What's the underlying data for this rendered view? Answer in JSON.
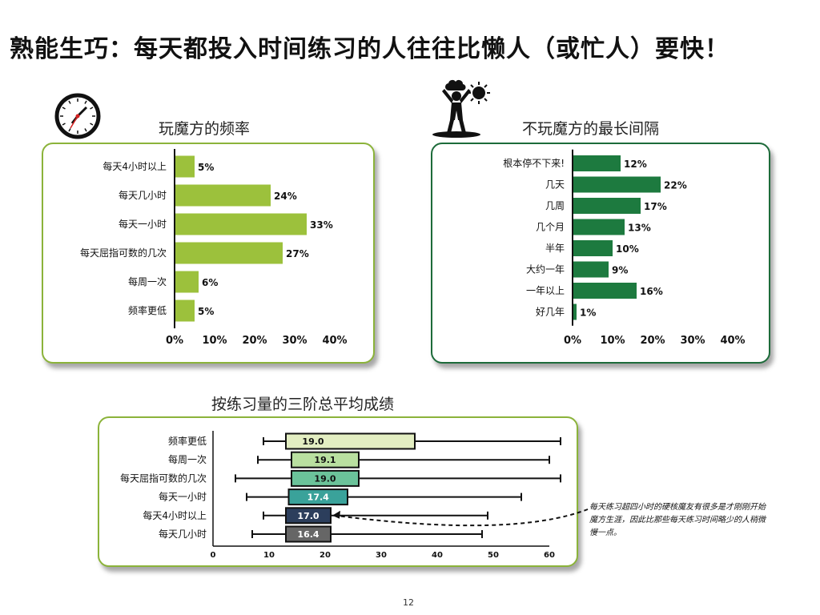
{
  "page": {
    "title": "熟能生巧：每天都投入时间练习的人往往比懒人（或忙人）要快！",
    "note": "每天练习超四小时的硬核魔友有很多是才刚刚开始魔方生涯，因此比那些每天练习时间略少的人稍微慢一点。",
    "page_number": "12"
  },
  "icons": {
    "left": "clock-icon",
    "right": "person-rain-sun-icon"
  },
  "colors": {
    "light_green": "#8bb33a",
    "dark_green": "#1d7a3f"
  },
  "chart_data": [
    {
      "type": "bar",
      "orientation": "horizontal",
      "title": "玩魔方的频率",
      "categories": [
        "每天4小时以上",
        "每天几小时",
        "每天一小时",
        "每天屈指可数的几次",
        "每周一次",
        "频率更低"
      ],
      "values": [
        5,
        24,
        33,
        27,
        6,
        5
      ],
      "value_labels": [
        "5%",
        "24%",
        "33%",
        "27%",
        "6%",
        "5%"
      ],
      "xlim": [
        0,
        40
      ],
      "xticks": [
        "0%",
        "10%",
        "20%",
        "30%",
        "40%"
      ],
      "color": "#9cc13c"
    },
    {
      "type": "bar",
      "orientation": "horizontal",
      "title": "不玩魔方的最长间隔",
      "categories": [
        "根本停不下来!",
        "几天",
        "几周",
        "几个月",
        "半年",
        "大约一年",
        "一年以上",
        "好几年"
      ],
      "values": [
        12,
        22,
        17,
        13,
        10,
        9,
        16,
        1
      ],
      "value_labels": [
        "12%",
        "22%",
        "17%",
        "13%",
        "10%",
        "9%",
        "16%",
        "1%"
      ],
      "xlim": [
        0,
        40
      ],
      "xticks": [
        "0%",
        "10%",
        "20%",
        "30%",
        "40%"
      ],
      "color": "#1d7a3f"
    },
    {
      "type": "boxplot",
      "title": "按练习量的三阶总平均成绩",
      "categories": [
        "频率更低",
        "每周一次",
        "每天屈指可数的几次",
        "每天一小时",
        "每天4小时以上",
        "每天几小时"
      ],
      "boxes": [
        {
          "min": 9,
          "q1": 13,
          "median": 19.0,
          "q3": 36,
          "max": 62,
          "label": "19.0",
          "color": "#e3eec2",
          "text": "#111111"
        },
        {
          "min": 8,
          "q1": 14,
          "median": 19.1,
          "q3": 26,
          "max": 60,
          "label": "19.1",
          "color": "#b9e0a0",
          "text": "#111111"
        },
        {
          "min": 4,
          "q1": 14,
          "median": 19.0,
          "q3": 26,
          "max": 62,
          "label": "19.0",
          "color": "#6bc39a",
          "text": "#111111"
        },
        {
          "min": 6,
          "q1": 13.5,
          "median": 17.4,
          "q3": 24,
          "max": 55,
          "label": "17.4",
          "color": "#3aa29a",
          "text": "#ffffff"
        },
        {
          "min": 9,
          "q1": 13,
          "median": 17.0,
          "q3": 21,
          "max": 49,
          "label": "17.0",
          "color": "#2c3e5c",
          "text": "#ffffff"
        },
        {
          "min": 7,
          "q1": 13,
          "median": 16.4,
          "q3": 21,
          "max": 48,
          "label": "16.4",
          "color": "#666666",
          "text": "#ffffff"
        }
      ],
      "xlim": [
        0,
        60
      ],
      "xticks": [
        "0",
        "10",
        "20",
        "30",
        "40",
        "50",
        "60"
      ]
    }
  ]
}
